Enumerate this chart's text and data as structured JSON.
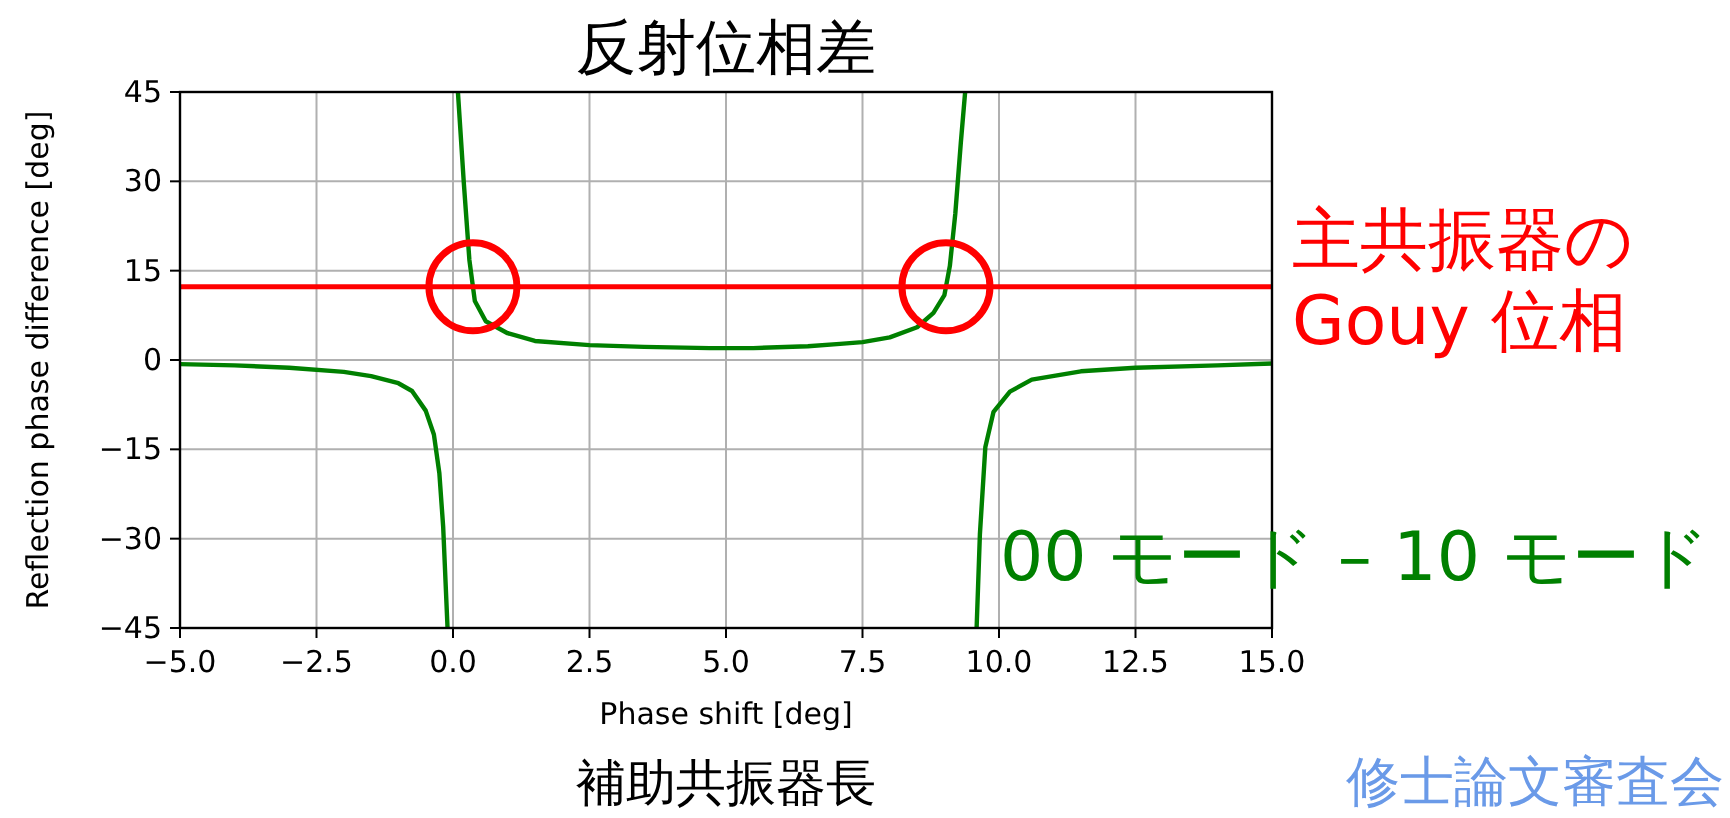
{
  "chart_data": {
    "type": "line",
    "title": "反射位相差",
    "xlabel": "Phase shift [deg]",
    "ylabel": "Reflection phase difference [deg]",
    "annotations": [
      "補助共振器長",
      "修士論文審査会"
    ],
    "xlim": [
      -5,
      15
    ],
    "ylim": [
      -45,
      45
    ],
    "xticks": [
      {
        "value": -5,
        "label": "−5.0"
      },
      {
        "value": -2.5,
        "label": "−2.5"
      },
      {
        "value": 0,
        "label": "0.0"
      },
      {
        "value": 2.5,
        "label": "2.5"
      },
      {
        "value": 5,
        "label": "5.0"
      },
      {
        "value": 7.5,
        "label": "7.5"
      },
      {
        "value": 10,
        "label": "10.0"
      },
      {
        "value": 12.5,
        "label": "12.5"
      },
      {
        "value": 15,
        "label": "15.0"
      }
    ],
    "yticks": [
      -45,
      -30,
      -15,
      0,
      15,
      30,
      45
    ],
    "grid": true,
    "legend": false,
    "marker": "none",
    "line_style": "solid",
    "series": [
      {
        "name": "00 モード – 10 モード",
        "color": "#008000",
        "x": [
          -5,
          -4,
          -3,
          -2,
          -1.5,
          -1,
          -0.75,
          -0.5,
          -0.35,
          -0.25,
          -0.18,
          -0.1,
          null,
          0.09,
          0.2,
          0.3,
          0.4,
          0.6,
          1,
          1.5,
          2.5,
          3.5,
          4.7,
          5.5,
          6.5,
          7.09,
          7.5,
          8,
          8.5,
          8.8,
          9,
          9.1,
          9.2,
          9.3,
          9.38,
          null,
          9.59,
          9.65,
          9.75,
          9.9,
          10.2,
          10.6,
          11.5,
          12.5,
          14,
          15
        ],
        "values": [
          -0.7,
          -0.9,
          -1.3,
          -2,
          -2.7,
          -3.9,
          -5.2,
          -8.5,
          -12.5,
          -19,
          -28,
          -45,
          null,
          45,
          29.5,
          16.8,
          9.9,
          6.5,
          4.5,
          3.2,
          2.5,
          2.2,
          2,
          2,
          2.3,
          2.7,
          3,
          3.8,
          5.5,
          7.9,
          10.9,
          15.8,
          24.6,
          36.4,
          45,
          null,
          -45,
          -29.3,
          -14.6,
          -8.7,
          -5.3,
          -3.3,
          -1.9,
          -1.3,
          -0.9,
          -0.6
        ]
      }
    ],
    "ref_lines": [
      {
        "axis": "y",
        "value": 12.3,
        "label": "主共振器の\nGouy 位相",
        "color": "#ff0000"
      }
    ]
  }
}
